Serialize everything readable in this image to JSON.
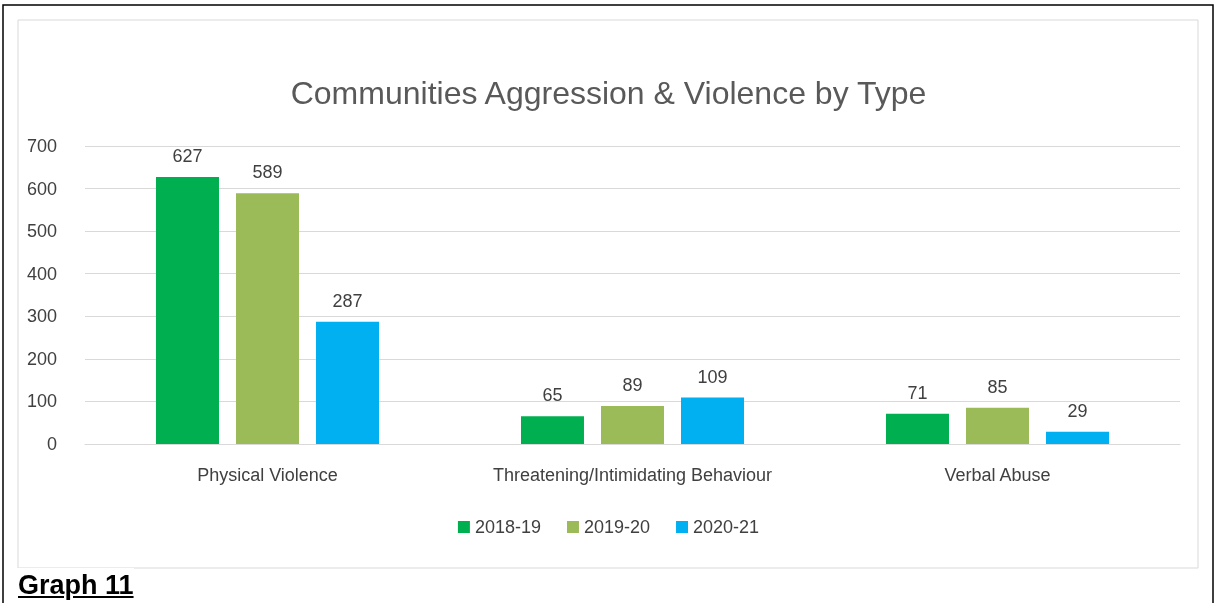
{
  "chart_data": {
    "type": "bar",
    "title": "Communities Aggression & Violence by Type",
    "categories": [
      "Physical Violence",
      "Threatening/Intimidating Behaviour",
      "Verbal Abuse"
    ],
    "series": [
      {
        "name": "2018-19",
        "color": "#00b050",
        "values": [
          627,
          65,
          71
        ]
      },
      {
        "name": "2019-20",
        "color": "#9bbb59",
        "values": [
          589,
          89,
          85
        ]
      },
      {
        "name": "2020-21",
        "color": "#00b0f0",
        "values": [
          287,
          109,
          29
        ]
      }
    ],
    "ylim": [
      0,
      700
    ],
    "yticks": [
      0,
      100,
      200,
      300,
      400,
      500,
      600,
      700
    ],
    "grid": "y",
    "legend": "bottom",
    "data_labels": true,
    "annotations": [
      "Graph 11"
    ]
  }
}
